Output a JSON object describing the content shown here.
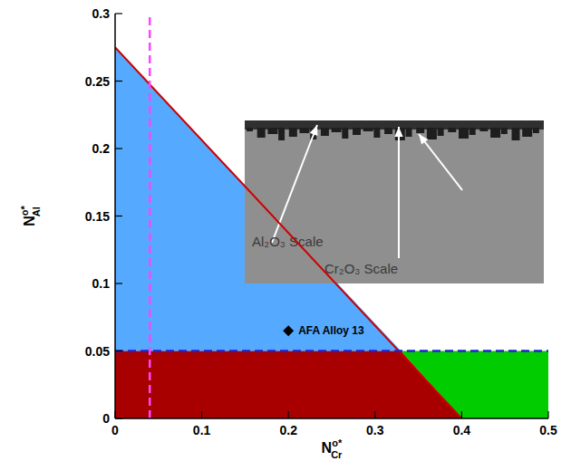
{
  "chart_data": {
    "type": "region",
    "xlabel": {
      "base": "N",
      "sup": "o*",
      "sub": "Cr"
    },
    "ylabel": {
      "base": "N",
      "sup": "o*",
      "sub": "Al"
    },
    "xlim": [
      0,
      0.5
    ],
    "ylim": [
      0,
      0.3
    ],
    "xticks": [
      0,
      0.1,
      0.2,
      0.3,
      0.4,
      0.5
    ],
    "yticks": [
      0,
      0.05,
      0.1,
      0.15,
      0.2,
      0.25,
      0.3
    ],
    "regions": [
      {
        "color": "#55aaff",
        "x": [
          0,
          0,
          0.33
        ],
        "y": [
          0.05,
          0.275,
          0.05
        ]
      },
      {
        "color": "#a80000",
        "x": [
          0,
          0,
          0.33,
          0.4
        ],
        "y": [
          0,
          0.05,
          0.05,
          0
        ]
      },
      {
        "color": "#00cc00",
        "x": [
          0.33,
          0.5,
          0.5,
          0.4
        ],
        "y": [
          0.05,
          0.05,
          0,
          0
        ]
      }
    ],
    "lines": [
      {
        "color": "#cc0000",
        "line_style": "solid",
        "x": [
          0,
          0.4
        ],
        "y": [
          0.275,
          0
        ]
      },
      {
        "color": "#2222cc",
        "line_style": "dashed",
        "x": [
          0,
          0.5
        ],
        "y": [
          0.05,
          0.05
        ]
      },
      {
        "color": "#ff44ff",
        "line_style": "dashed",
        "x": [
          0.04,
          0.04
        ],
        "y": [
          0,
          0.3
        ]
      }
    ],
    "points": [
      {
        "text": "AFA Alloy 13",
        "x": 0.2,
        "y": 0.065,
        "marker": "diamond",
        "color": "#000000"
      }
    ],
    "inset": {
      "labels": [
        "Al₂O₃ Scale",
        "Cr₂O₃ Scale"
      ]
    }
  }
}
